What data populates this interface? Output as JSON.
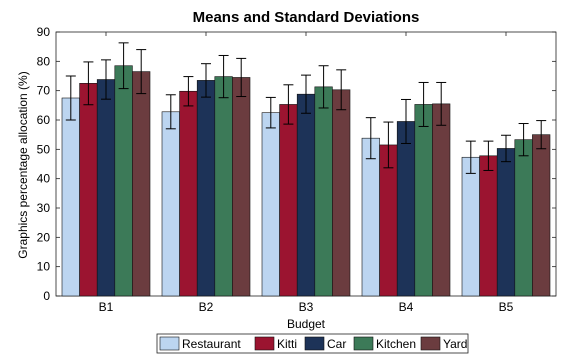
{
  "chart_data": {
    "type": "bar",
    "title": "Means and Standard Deviations",
    "xlabel": "Budget",
    "ylabel": "Graphics percentage allocation (%)",
    "ylim": [
      0,
      90
    ],
    "yticks": [
      0,
      10,
      20,
      30,
      40,
      50,
      60,
      70,
      80,
      90
    ],
    "categories": [
      "B1",
      "B2",
      "B3",
      "B4",
      "B5"
    ],
    "grid": false,
    "legend_position": "bottom",
    "series": [
      {
        "name": "Restaurant",
        "color": "#bcd5f0",
        "values": [
          67.5,
          62.8,
          62.5,
          53.8,
          47.3
        ],
        "errors": [
          7.5,
          5.8,
          5.2,
          7.0,
          5.5
        ]
      },
      {
        "name": "Kitti",
        "color": "#9b1430",
        "values": [
          72.5,
          69.8,
          65.3,
          51.5,
          47.8
        ],
        "errors": [
          7.3,
          5.0,
          6.7,
          7.8,
          5.0
        ]
      },
      {
        "name": "Car",
        "color": "#1d3358",
        "values": [
          73.8,
          73.5,
          68.8,
          59.5,
          50.3
        ],
        "errors": [
          6.7,
          5.7,
          6.5,
          7.5,
          4.5
        ]
      },
      {
        "name": "Kitchen",
        "color": "#3c7a58",
        "values": [
          78.5,
          74.8,
          71.3,
          65.3,
          53.3
        ],
        "errors": [
          7.8,
          7.2,
          7.2,
          7.5,
          5.5
        ]
      },
      {
        "name": "Yard",
        "color": "#6b3c3f",
        "values": [
          76.5,
          74.5,
          70.3,
          65.5,
          55.0
        ],
        "errors": [
          7.5,
          6.5,
          6.8,
          7.3,
          4.8
        ]
      }
    ]
  }
}
